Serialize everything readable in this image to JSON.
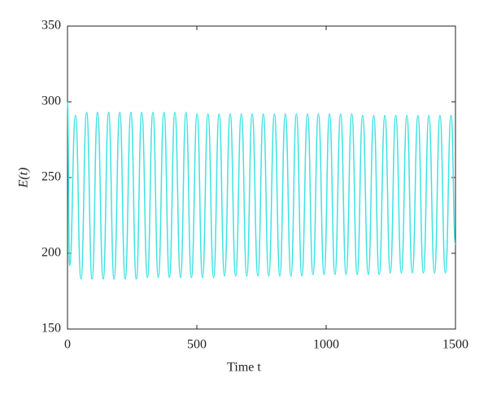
{
  "chart_data": {
    "type": "line",
    "x_label": "Time t",
    "y_label": "E(t)",
    "xlim": [
      0,
      1500
    ],
    "xticks": [
      0,
      500,
      1000,
      1500
    ],
    "ylim": [
      150,
      350
    ],
    "yticks": [
      150,
      200,
      250,
      300,
      350
    ],
    "grid": false,
    "series": [
      {
        "color": "#3de3e3",
        "x": [
          0,
          8,
          31,
          52,
          74,
          95,
          116,
          138,
          159,
          180,
          202,
          223,
          245,
          266,
          287,
          309,
          330,
          351,
          373,
          394,
          415,
          437,
          458,
          479,
          501,
          522,
          543,
          565,
          586,
          607,
          629,
          650,
          672,
          693,
          714,
          736,
          757,
          778,
          800,
          821,
          842,
          864,
          885,
          906,
          928,
          949,
          970,
          992,
          1013,
          1034,
          1056,
          1077,
          1099,
          1120,
          1141,
          1163,
          1184,
          1205,
          1227,
          1248,
          1269,
          1291,
          1312,
          1333,
          1355,
          1376,
          1397,
          1419,
          1440,
          1461,
          1483,
          1500
        ],
        "values": [
          300,
          192,
          291,
          183,
          293,
          183,
          293,
          183,
          293,
          183,
          293,
          183,
          293,
          183,
          293,
          184,
          293,
          184,
          293,
          184,
          293,
          184,
          293,
          184,
          292,
          184,
          292,
          184,
          292,
          185,
          292,
          185,
          292,
          185,
          292,
          185,
          292,
          185,
          292,
          185,
          292,
          185,
          292,
          185,
          292,
          186,
          292,
          186,
          292,
          186,
          292,
          186,
          292,
          186,
          291,
          186,
          291,
          186,
          291,
          187,
          291,
          187,
          291,
          187,
          291,
          187,
          291,
          187,
          291,
          187,
          291,
          206
        ]
      }
    ]
  }
}
